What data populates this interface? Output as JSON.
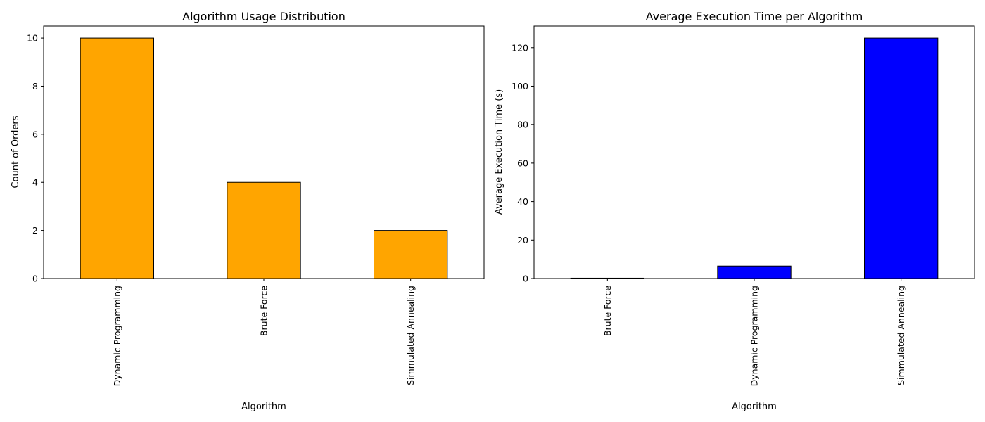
{
  "chart_data": [
    {
      "type": "bar",
      "title": "Algorithm Usage Distribution",
      "xlabel": "Algorithm",
      "ylabel": "Count of Orders",
      "categories": [
        "Dynamic Programming",
        "Brute Force",
        "Simmulated Annealing"
      ],
      "values": [
        10,
        4,
        2
      ],
      "ylim": [
        0,
        10.5
      ],
      "yticks": [
        0,
        2,
        4,
        6,
        8,
        10
      ],
      "bar_color": "#FFA500",
      "edge_color": "#000000",
      "grid": false
    },
    {
      "type": "bar",
      "title": "Average Execution Time per Algorithm",
      "xlabel": "Algorithm",
      "ylabel": "Average Execution Time (s)",
      "categories": [
        "Brute Force",
        "Dynamic Programming",
        "Simmulated Annealing"
      ],
      "values": [
        0.2,
        6.5,
        125
      ],
      "ylim": [
        0,
        131.25
      ],
      "yticks": [
        0,
        20,
        40,
        60,
        80,
        100,
        120
      ],
      "bar_color": "#0000FF",
      "edge_color": "#000000",
      "grid": false
    }
  ]
}
